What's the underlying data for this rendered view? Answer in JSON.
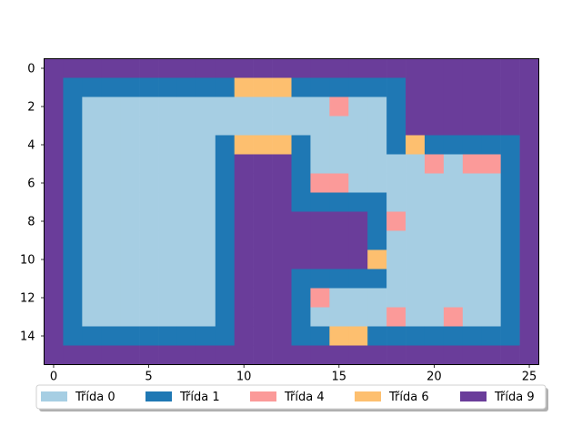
{
  "chart_data": {
    "type": "heatmap",
    "title": "",
    "xlabel": "",
    "ylabel": "",
    "xlim": [
      -0.5,
      25.5
    ],
    "ylim": [
      15.5,
      -0.5
    ],
    "xticks": [
      0,
      5,
      10,
      15,
      20,
      25
    ],
    "yticks": [
      0,
      2,
      4,
      6,
      8,
      10,
      12,
      14
    ],
    "grid": false,
    "legend_position": "bottom-center",
    "classes": [
      {
        "value": 0,
        "label": "Třída 0",
        "color": "#a6cee3"
      },
      {
        "value": 1,
        "label": "Třída 1",
        "color": "#1f78b4"
      },
      {
        "value": 4,
        "label": "Třída 4",
        "color": "#fb9a99"
      },
      {
        "value": 6,
        "label": "Třída 6",
        "color": "#fdbf6f"
      },
      {
        "value": 9,
        "label": "Třída 9",
        "color": "#6a3d9a"
      }
    ],
    "grid_values": [
      [
        9,
        9,
        9,
        9,
        9,
        9,
        9,
        9,
        9,
        9,
        9,
        9,
        9,
        9,
        9,
        9,
        9,
        9,
        9,
        9,
        9,
        9,
        9,
        9,
        9,
        9
      ],
      [
        9,
        1,
        1,
        1,
        1,
        1,
        1,
        1,
        1,
        1,
        6,
        6,
        6,
        1,
        1,
        1,
        1,
        1,
        1,
        9,
        9,
        9,
        9,
        9,
        9,
        9
      ],
      [
        9,
        1,
        0,
        0,
        0,
        0,
        0,
        0,
        0,
        0,
        0,
        0,
        0,
        0,
        0,
        4,
        0,
        0,
        1,
        9,
        9,
        9,
        9,
        9,
        9,
        9
      ],
      [
        9,
        1,
        0,
        0,
        0,
        0,
        0,
        0,
        0,
        0,
        0,
        0,
        0,
        0,
        0,
        0,
        0,
        0,
        1,
        9,
        9,
        9,
        9,
        9,
        9,
        9
      ],
      [
        9,
        1,
        0,
        0,
        0,
        0,
        0,
        0,
        0,
        1,
        6,
        6,
        6,
        1,
        0,
        0,
        0,
        0,
        1,
        6,
        1,
        1,
        1,
        1,
        1,
        9
      ],
      [
        9,
        1,
        0,
        0,
        0,
        0,
        0,
        0,
        0,
        1,
        9,
        9,
        9,
        1,
        0,
        0,
        0,
        0,
        0,
        0,
        4,
        0,
        4,
        4,
        1,
        9
      ],
      [
        9,
        1,
        0,
        0,
        0,
        0,
        0,
        0,
        0,
        1,
        9,
        9,
        9,
        1,
        4,
        4,
        0,
        0,
        0,
        0,
        0,
        0,
        0,
        0,
        1,
        9
      ],
      [
        9,
        1,
        0,
        0,
        0,
        0,
        0,
        0,
        0,
        1,
        9,
        9,
        9,
        1,
        1,
        1,
        1,
        1,
        0,
        0,
        0,
        0,
        0,
        0,
        1,
        9
      ],
      [
        9,
        1,
        0,
        0,
        0,
        0,
        0,
        0,
        0,
        1,
        9,
        9,
        9,
        9,
        9,
        9,
        9,
        1,
        4,
        0,
        0,
        0,
        0,
        0,
        1,
        9
      ],
      [
        9,
        1,
        0,
        0,
        0,
        0,
        0,
        0,
        0,
        1,
        9,
        9,
        9,
        9,
        9,
        9,
        9,
        1,
        0,
        0,
        0,
        0,
        0,
        0,
        1,
        9
      ],
      [
        9,
        1,
        0,
        0,
        0,
        0,
        0,
        0,
        0,
        1,
        9,
        9,
        9,
        9,
        9,
        9,
        9,
        6,
        0,
        0,
        0,
        0,
        0,
        0,
        1,
        9
      ],
      [
        9,
        1,
        0,
        0,
        0,
        0,
        0,
        0,
        0,
        1,
        9,
        9,
        9,
        1,
        1,
        1,
        1,
        1,
        0,
        0,
        0,
        0,
        0,
        0,
        1,
        9
      ],
      [
        9,
        1,
        0,
        0,
        0,
        0,
        0,
        0,
        0,
        1,
        9,
        9,
        9,
        1,
        4,
        0,
        0,
        0,
        0,
        0,
        0,
        0,
        0,
        0,
        1,
        9
      ],
      [
        9,
        1,
        0,
        0,
        0,
        0,
        0,
        0,
        0,
        1,
        9,
        9,
        9,
        1,
        0,
        0,
        0,
        0,
        4,
        0,
        0,
        4,
        0,
        0,
        1,
        9
      ],
      [
        9,
        1,
        1,
        1,
        1,
        1,
        1,
        1,
        1,
        1,
        9,
        9,
        9,
        1,
        1,
        6,
        6,
        1,
        1,
        1,
        1,
        1,
        1,
        1,
        1,
        9
      ],
      [
        9,
        9,
        9,
        9,
        9,
        9,
        9,
        9,
        9,
        9,
        9,
        9,
        9,
        9,
        9,
        9,
        9,
        9,
        9,
        9,
        9,
        9,
        9,
        9,
        9,
        9
      ]
    ]
  }
}
